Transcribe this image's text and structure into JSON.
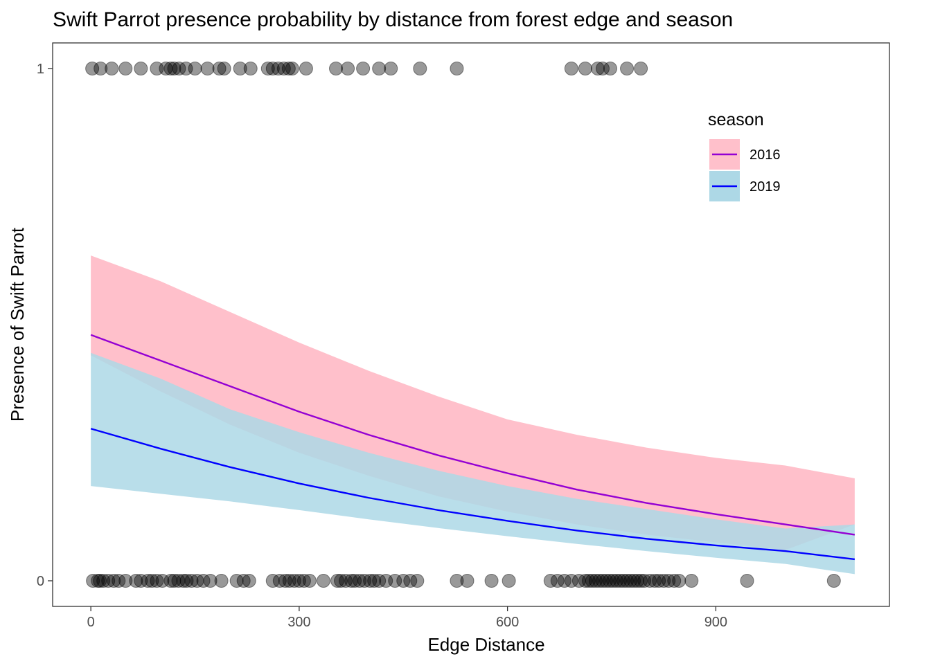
{
  "chart_data": {
    "type": "line",
    "title": "Swift Parrot presence probability by distance from forest edge and season",
    "xlabel": "Edge Distance",
    "ylabel": "Presence of Swift Parrot",
    "xlim": [
      -55,
      1150
    ],
    "ylim": [
      -0.05,
      1.05
    ],
    "x_ticks": [
      0,
      300,
      600,
      900
    ],
    "x_tick_labels": [
      "0",
      "300",
      "600",
      "900"
    ],
    "y_ticks": [
      0,
      1
    ],
    "y_tick_labels": [
      "0",
      "1"
    ],
    "grid": false,
    "legend": {
      "title": "season",
      "placement": "top-right"
    },
    "series": [
      {
        "name": "2016",
        "line_color": "#9400d3",
        "band_color": "#ffc0cb",
        "x": [
          0,
          100,
          200,
          300,
          400,
          500,
          600,
          700,
          800,
          900,
          1000,
          1100
        ],
        "fit": [
          0.48,
          0.43,
          0.38,
          0.33,
          0.285,
          0.245,
          0.21,
          0.178,
          0.152,
          0.13,
          0.11,
          0.09
        ],
        "lower": [
          0.44,
          0.37,
          0.305,
          0.25,
          0.205,
          0.165,
          0.135,
          0.11,
          0.09,
          0.075,
          0.06,
          0.11
        ],
        "upper": [
          0.635,
          0.585,
          0.525,
          0.465,
          0.41,
          0.36,
          0.315,
          0.285,
          0.26,
          0.24,
          0.225,
          0.2
        ]
      },
      {
        "name": "2019",
        "line_color": "#0000ff",
        "band_color": "#add8e6",
        "x": [
          0,
          100,
          200,
          300,
          400,
          500,
          600,
          700,
          800,
          900,
          1000,
          1100
        ],
        "fit": [
          0.297,
          0.258,
          0.222,
          0.19,
          0.162,
          0.138,
          0.117,
          0.098,
          0.082,
          0.069,
          0.058,
          0.042
        ],
        "lower": [
          0.185,
          0.17,
          0.155,
          0.138,
          0.12,
          0.103,
          0.087,
          0.072,
          0.058,
          0.045,
          0.033,
          0.013
        ],
        "upper": [
          0.445,
          0.395,
          0.335,
          0.29,
          0.25,
          0.215,
          0.185,
          0.16,
          0.14,
          0.12,
          0.102,
          0.11
        ]
      }
    ],
    "points": {
      "y1": [
        2,
        14,
        30,
        50,
        72,
        95,
        108,
        115,
        120,
        127,
        137,
        150,
        168,
        185,
        192,
        215,
        230,
        255,
        262,
        270,
        278,
        285,
        290,
        310,
        353,
        370,
        392,
        415,
        432,
        474,
        527,
        692,
        712,
        730,
        737,
        748,
        772,
        792
      ],
      "y0": [
        3,
        10,
        13,
        18,
        25,
        33,
        40,
        50,
        65,
        72,
        82,
        88,
        95,
        103,
        115,
        120,
        126,
        133,
        138,
        145,
        153,
        162,
        172,
        188,
        210,
        220,
        228,
        262,
        272,
        280,
        286,
        293,
        300,
        307,
        315,
        335,
        355,
        360,
        367,
        375,
        380,
        387,
        394,
        402,
        408,
        415,
        425,
        438,
        450,
        460,
        470,
        527,
        542,
        577,
        602,
        662,
        672,
        682,
        692,
        703,
        712,
        717,
        722,
        727,
        732,
        737,
        742,
        747,
        752,
        757,
        762,
        767,
        772,
        777,
        782,
        787,
        792,
        797,
        805,
        812,
        818,
        825,
        832,
        840,
        847,
        865,
        945,
        1070
      ]
    }
  }
}
